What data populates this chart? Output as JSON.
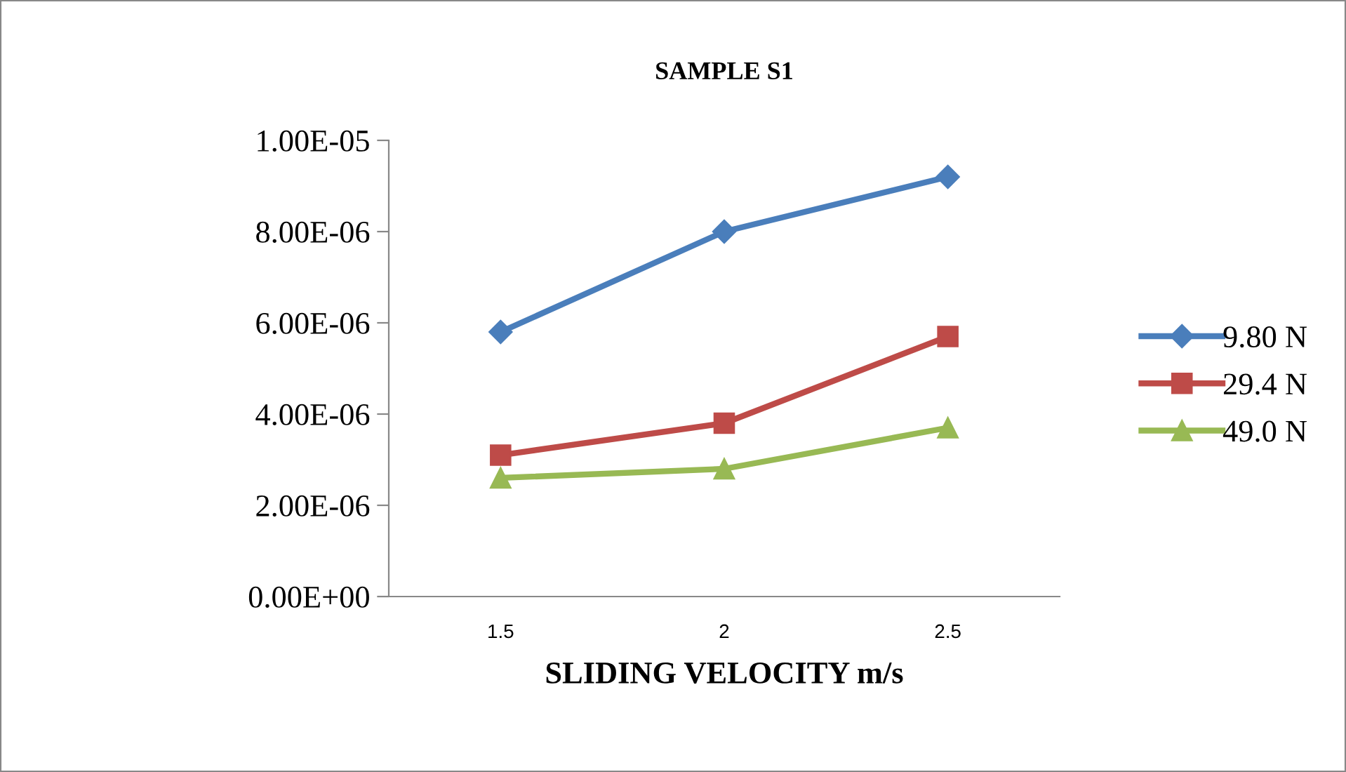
{
  "chart_data": {
    "type": "line",
    "title": "SAMPLE S1",
    "xlabel": "SLIDING VELOCITY m/s",
    "categories": [
      "1.5",
      "2",
      "2.5"
    ],
    "series": [
      {
        "name": "9.80 N",
        "color": "#4a7ebb",
        "marker": "diamond",
        "values": [
          5.8e-06,
          8e-06,
          9.2e-06
        ]
      },
      {
        "name": "29.4 N",
        "color": "#be4b48",
        "marker": "square",
        "values": [
          3.1e-06,
          3.8e-06,
          5.7e-06
        ]
      },
      {
        "name": "49.0 N",
        "color": "#98b954",
        "marker": "triangle",
        "values": [
          2.6e-06,
          2.8e-06,
          3.7e-06
        ]
      }
    ],
    "ylim": [
      0,
      1e-05
    ],
    "yticks": [
      {
        "value": 0,
        "label": "0.00E+00"
      },
      {
        "value": 2e-06,
        "label": "2.00E-06"
      },
      {
        "value": 4e-06,
        "label": "4.00E-06"
      },
      {
        "value": 6e-06,
        "label": "6.00E-06"
      },
      {
        "value": 8e-06,
        "label": "8.00E-06"
      },
      {
        "value": 1e-05,
        "label": "1.00E-05"
      }
    ],
    "grid": false,
    "legend": "right",
    "line_style": "solid"
  }
}
